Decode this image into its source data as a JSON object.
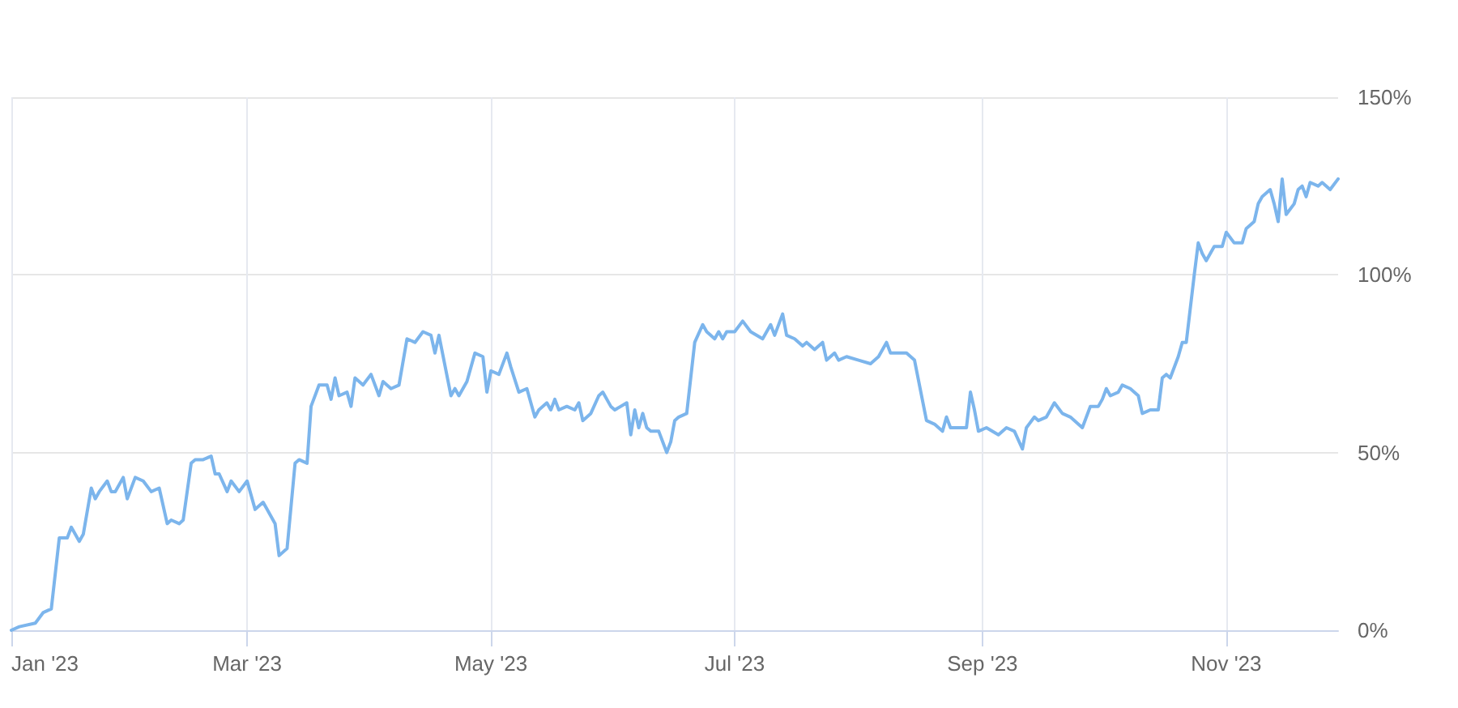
{
  "chart_data": {
    "type": "line",
    "color": "#7cb5ec",
    "marker": "none",
    "grid": true,
    "xlim": [
      "2023-01-01",
      "2023-11-29"
    ],
    "xticks": [
      {
        "value": "2023-01-01",
        "label": "Jan '23"
      },
      {
        "value": "2023-03-01",
        "label": "Mar '23"
      },
      {
        "value": "2023-05-01",
        "label": "May '23"
      },
      {
        "value": "2023-07-01",
        "label": "Jul '23"
      },
      {
        "value": "2023-09-01",
        "label": "Sep '23"
      },
      {
        "value": "2023-11-01",
        "label": "Nov '23"
      }
    ],
    "ylim": [
      0,
      150
    ],
    "yticks": [
      {
        "value": 0,
        "label": "0%"
      },
      {
        "value": 50,
        "label": "50%"
      },
      {
        "value": 100,
        "label": "100%"
      },
      {
        "value": 150,
        "label": "150%"
      }
    ],
    "x": [
      "2023-01-01",
      "2023-01-03",
      "2023-01-07",
      "2023-01-09",
      "2023-01-11",
      "2023-01-13",
      "2023-01-15",
      "2023-01-16",
      "2023-01-18",
      "2023-01-19",
      "2023-01-21",
      "2023-01-22",
      "2023-01-23",
      "2023-01-25",
      "2023-01-26",
      "2023-01-27",
      "2023-01-29",
      "2023-01-30",
      "2023-02-01",
      "2023-02-03",
      "2023-02-05",
      "2023-02-07",
      "2023-02-09",
      "2023-02-10",
      "2023-02-12",
      "2023-02-13",
      "2023-02-15",
      "2023-02-16",
      "2023-02-18",
      "2023-02-20",
      "2023-02-21",
      "2023-02-22",
      "2023-02-24",
      "2023-02-25",
      "2023-02-27",
      "2023-03-01",
      "2023-03-03",
      "2023-03-05",
      "2023-03-06",
      "2023-03-08",
      "2023-03-09",
      "2023-03-11",
      "2023-03-13",
      "2023-03-14",
      "2023-03-16",
      "2023-03-17",
      "2023-03-19",
      "2023-03-21",
      "2023-03-22",
      "2023-03-23",
      "2023-03-24",
      "2023-03-26",
      "2023-03-27",
      "2023-03-28",
      "2023-03-30",
      "2023-04-01",
      "2023-04-03",
      "2023-04-04",
      "2023-04-06",
      "2023-04-08",
      "2023-04-10",
      "2023-04-12",
      "2023-04-14",
      "2023-04-16",
      "2023-04-17",
      "2023-04-18",
      "2023-04-21",
      "2023-04-22",
      "2023-04-23",
      "2023-04-25",
      "2023-04-27",
      "2023-04-29",
      "2023-04-30",
      "2023-05-01",
      "2023-05-03",
      "2023-05-05",
      "2023-05-06",
      "2023-05-08",
      "2023-05-10",
      "2023-05-12",
      "2023-05-13",
      "2023-05-15",
      "2023-05-16",
      "2023-05-17",
      "2023-05-18",
      "2023-05-20",
      "2023-05-22",
      "2023-05-23",
      "2023-05-24",
      "2023-05-26",
      "2023-05-28",
      "2023-05-29",
      "2023-05-31",
      "2023-06-01",
      "2023-06-04",
      "2023-06-05",
      "2023-06-06",
      "2023-06-07",
      "2023-06-08",
      "2023-06-09",
      "2023-06-10",
      "2023-06-12",
      "2023-06-13",
      "2023-06-14",
      "2023-06-15",
      "2023-06-16",
      "2023-06-17",
      "2023-06-19",
      "2023-06-21",
      "2023-06-23",
      "2023-06-24",
      "2023-06-26",
      "2023-06-27",
      "2023-06-28",
      "2023-06-29",
      "2023-07-01",
      "2023-07-03",
      "2023-07-05",
      "2023-07-08",
      "2023-07-10",
      "2023-07-11",
      "2023-07-13",
      "2023-07-14",
      "2023-07-16",
      "2023-07-18",
      "2023-07-19",
      "2023-07-21",
      "2023-07-23",
      "2023-07-24",
      "2023-07-26",
      "2023-07-27",
      "2023-07-29",
      "2023-08-01",
      "2023-08-04",
      "2023-08-06",
      "2023-08-08",
      "2023-08-09",
      "2023-08-13",
      "2023-08-15",
      "2023-08-18",
      "2023-08-20",
      "2023-08-22",
      "2023-08-23",
      "2023-08-24",
      "2023-08-28",
      "2023-08-29",
      "2023-08-30",
      "2023-08-31",
      "2023-09-02",
      "2023-09-05",
      "2023-09-07",
      "2023-09-09",
      "2023-09-11",
      "2023-09-12",
      "2023-09-14",
      "2023-09-15",
      "2023-09-17",
      "2023-09-19",
      "2023-09-21",
      "2023-09-23",
      "2023-09-26",
      "2023-09-28",
      "2023-09-30",
      "2023-10-01",
      "2023-10-02",
      "2023-10-03",
      "2023-10-05",
      "2023-10-06",
      "2023-10-08",
      "2023-10-10",
      "2023-10-11",
      "2023-10-13",
      "2023-10-15",
      "2023-10-16",
      "2023-10-17",
      "2023-10-18",
      "2023-10-20",
      "2023-10-21",
      "2023-10-22",
      "2023-10-24",
      "2023-10-25",
      "2023-10-26",
      "2023-10-27",
      "2023-10-29",
      "2023-10-31",
      "2023-11-01",
      "2023-11-03",
      "2023-11-05",
      "2023-11-06",
      "2023-11-08",
      "2023-11-09",
      "2023-11-10",
      "2023-11-12",
      "2023-11-13",
      "2023-11-14",
      "2023-11-15",
      "2023-11-16",
      "2023-11-18",
      "2023-11-19",
      "2023-11-20",
      "2023-11-21",
      "2023-11-22",
      "2023-11-24",
      "2023-11-25",
      "2023-11-27",
      "2023-11-29"
    ],
    "values": [
      0,
      1,
      2,
      5,
      6,
      26,
      26,
      29,
      25,
      27,
      40,
      37,
      39,
      42,
      39,
      39,
      43,
      37,
      43,
      42,
      39,
      40,
      30,
      31,
      30,
      31,
      47,
      48,
      48,
      49,
      44,
      44,
      39,
      42,
      39,
      42,
      34,
      36,
      34,
      30,
      21,
      23,
      47,
      48,
      47,
      63,
      69,
      69,
      65,
      71,
      66,
      67,
      63,
      71,
      69,
      72,
      66,
      70,
      68,
      69,
      82,
      81,
      84,
      83,
      78,
      83,
      66,
      68,
      66,
      70,
      78,
      77,
      67,
      73,
      72,
      78,
      74,
      67,
      68,
      60,
      62,
      64,
      62,
      65,
      62,
      63,
      62,
      64,
      59,
      61,
      66,
      67,
      63,
      62,
      64,
      55,
      62,
      57,
      61,
      57,
      56,
      56,
      53,
      50,
      53,
      59,
      60,
      61,
      81,
      86,
      84,
      82,
      84,
      82,
      84,
      84,
      87,
      84,
      82,
      86,
      83,
      89,
      83,
      82,
      80,
      81,
      79,
      81,
      76,
      78,
      76,
      77,
      76,
      75,
      77,
      81,
      78,
      78,
      76,
      59,
      58,
      56,
      60,
      57,
      57,
      67,
      62,
      56,
      57,
      55,
      57,
      56,
      51,
      57,
      60,
      59,
      60,
      64,
      61,
      60,
      57,
      63,
      63,
      65,
      68,
      66,
      67,
      69,
      68,
      66,
      61,
      62,
      62,
      71,
      72,
      71,
      77,
      81,
      81,
      100,
      109,
      106,
      104,
      108,
      108,
      112,
      109,
      109,
      113,
      115,
      120,
      122,
      124,
      120,
      115,
      127,
      117,
      120,
      124,
      125,
      122,
      126,
      125,
      126,
      124,
      127
    ]
  }
}
